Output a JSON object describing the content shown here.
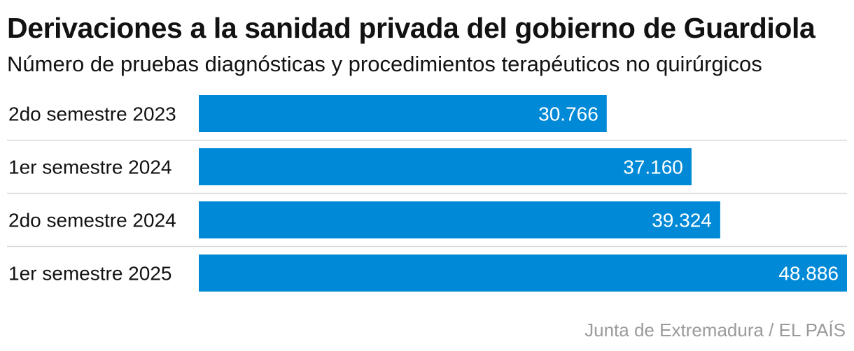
{
  "header": {
    "title": "Derivaciones a la sanidad privada del gobierno de Guardiola",
    "subtitle": "Número de pruebas diagnósticas y procedimientos terapéuticos no quirúrgicos"
  },
  "source": "Junta de Extremadura / EL PAÍS",
  "colors": {
    "bar": "#0089d6",
    "separator": "#d9d9d9",
    "value_text": "#ffffff",
    "label_text": "#121212"
  },
  "chart_data": {
    "type": "bar",
    "orientation": "horizontal",
    "title": "Derivaciones a la sanidad privada del gobierno de Guardiola",
    "subtitle": "Número de pruebas diagnósticas y procedimientos terapéuticos no quirúrgicos",
    "categories": [
      "2do semestre 2023",
      "1er semestre 2024",
      "2do semestre 2024",
      "1er semestre 2025"
    ],
    "values": [
      30766,
      37160,
      39324,
      48886
    ],
    "value_labels": [
      "30.766",
      "37.160",
      "39.324",
      "48.886"
    ],
    "xlim": [
      0,
      48886
    ],
    "grid": false,
    "legend": "none"
  }
}
